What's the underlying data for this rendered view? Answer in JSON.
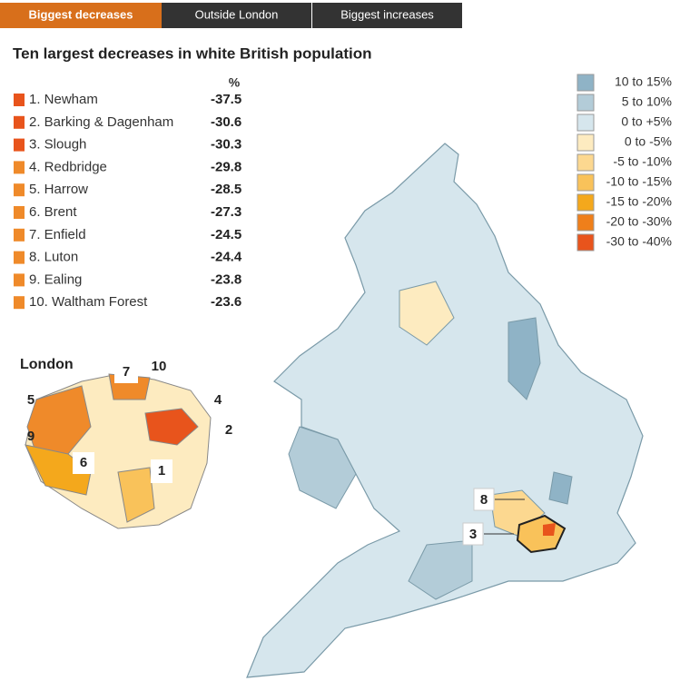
{
  "tabs": [
    {
      "label": "Biggest decreases",
      "active": true
    },
    {
      "label": "Outside London",
      "active": false
    },
    {
      "label": "Biggest increases",
      "active": false
    }
  ],
  "title": "Ten largest decreases in white British population",
  "list": {
    "unit_header": "%",
    "items": [
      {
        "name": "1. Newham",
        "value": -37.5,
        "color": "#e8541c"
      },
      {
        "name": "2. Barking & Dagenham",
        "value": -30.6,
        "color": "#e8541c"
      },
      {
        "name": "3. Slough",
        "value": -30.3,
        "color": "#e8541c"
      },
      {
        "name": "4. Redbridge",
        "value": -29.8,
        "color": "#ef8a2a"
      },
      {
        "name": "5. Harrow",
        "value": -28.5,
        "color": "#ef8a2a"
      },
      {
        "name": "6. Brent",
        "value": -27.3,
        "color": "#ef8a2a"
      },
      {
        "name": "7. Enfield",
        "value": -24.5,
        "color": "#ef8a2a"
      },
      {
        "name": "8. Luton",
        "value": -24.4,
        "color": "#ef8a2a"
      },
      {
        "name": "9. Ealing",
        "value": -23.8,
        "color": "#ef8a2a"
      },
      {
        "name": "10. Waltham Forest",
        "value": -23.6,
        "color": "#ef8a2a"
      }
    ]
  },
  "legend": [
    {
      "label": "10 to 15%",
      "color": "#8fb3c6"
    },
    {
      "label": "5 to 10%",
      "color": "#b3ccd8"
    },
    {
      "label": "0 to +5%",
      "color": "#d6e6ed"
    },
    {
      "label": "0 to -5%",
      "color": "#fdebc0"
    },
    {
      "label": "-5 to -10%",
      "color": "#fcd890"
    },
    {
      "label": "-10 to -15%",
      "color": "#f9c25a"
    },
    {
      "label": "-15 to -20%",
      "color": "#f4a81c"
    },
    {
      "label": "-20 to -30%",
      "color": "#ef7f1a"
    },
    {
      "label": "-30 to -40%",
      "color": "#e8541c"
    }
  ],
  "inset": {
    "title": "London",
    "labels": [
      "7",
      "10",
      "5",
      "4",
      "9",
      "2",
      "6",
      "1"
    ]
  },
  "map": {
    "labels": [
      "8",
      "3"
    ]
  }
}
